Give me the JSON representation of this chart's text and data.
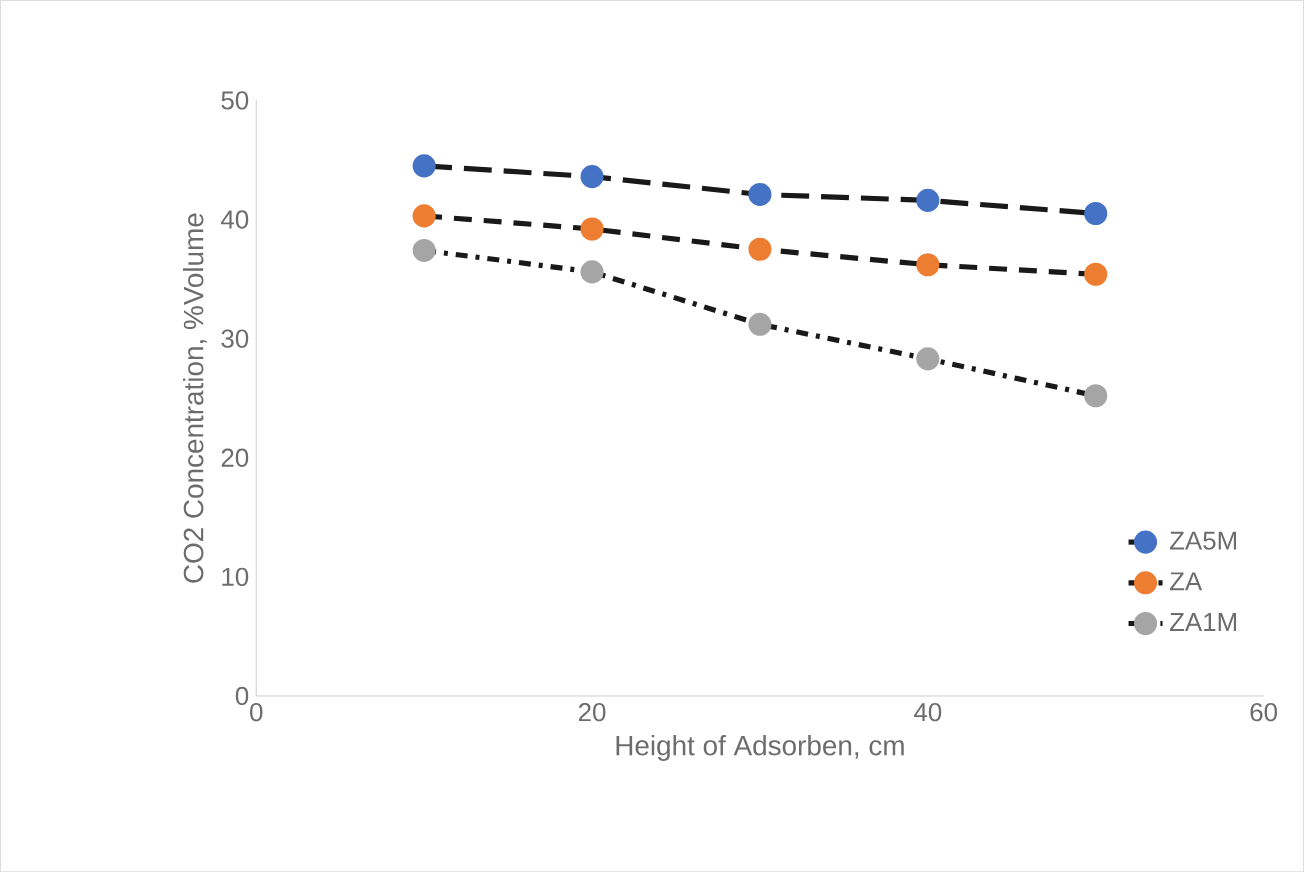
{
  "chart_data": {
    "type": "line",
    "xlabel": "Height of Adsorben, cm",
    "ylabel": "CO2 Concentration, %Volume",
    "x": [
      10,
      20,
      30,
      40,
      50
    ],
    "series": [
      {
        "name": "ZA5M",
        "color": "#4472c4",
        "values": [
          44.5,
          43.6,
          42.1,
          41.6,
          40.5
        ],
        "line_style": "dashed"
      },
      {
        "name": "ZA",
        "color": "#ed7d31",
        "values": [
          40.3,
          39.2,
          37.5,
          36.2,
          35.4
        ],
        "line_style": "dashed"
      },
      {
        "name": "ZA1M",
        "color": "#a5a5a5",
        "values": [
          37.4,
          35.6,
          31.2,
          28.3,
          25.2
        ],
        "line_style": "dotted"
      }
    ],
    "xlim": [
      0,
      60
    ],
    "xticks": [
      0,
      20,
      40,
      60
    ],
    "ylim": [
      0,
      50
    ],
    "yticks": [
      0,
      10,
      20,
      30,
      40,
      50
    ],
    "grid": false,
    "legend": "right",
    "marker": "circle"
  }
}
